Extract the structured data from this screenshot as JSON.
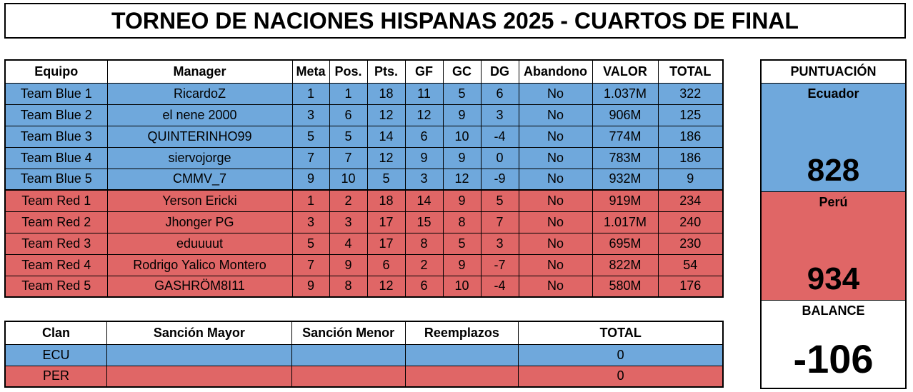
{
  "title": "TORNEO DE NACIONES HISPANAS 2025 - CUARTOS DE FINAL",
  "colors": {
    "blue": "#6fa8dc",
    "red": "#e06666"
  },
  "standings": {
    "headers": [
      "Equipo",
      "Manager",
      "Meta",
      "Pos.",
      "Pts.",
      "GF",
      "GC",
      "DG",
      "Abandono",
      "VALOR",
      "TOTAL"
    ],
    "rows": [
      [
        "Team Blue 1",
        "RicardoZ",
        "1",
        "1",
        "18",
        "11",
        "5",
        "6",
        "No",
        "1.037M",
        "322"
      ],
      [
        "Team Blue 2",
        "el nene 2000",
        "3",
        "6",
        "12",
        "12",
        "9",
        "3",
        "No",
        "906M",
        "125"
      ],
      [
        "Team Blue 3",
        "QUINTERINHO99",
        "5",
        "5",
        "14",
        "6",
        "10",
        "-4",
        "No",
        "774M",
        "186"
      ],
      [
        "Team Blue 4",
        "siervojorge",
        "7",
        "7",
        "12",
        "9",
        "9",
        "0",
        "No",
        "783M",
        "186"
      ],
      [
        "Team Blue 5",
        "CMMV_7",
        "9",
        "10",
        "5",
        "3",
        "12",
        "-9",
        "No",
        "932M",
        "9"
      ],
      [
        "Team Red 1",
        "Yerson Ericki",
        "1",
        "2",
        "18",
        "14",
        "9",
        "5",
        "No",
        "919M",
        "234"
      ],
      [
        "Team Red 2",
        "Jhonger PG",
        "3",
        "3",
        "17",
        "15",
        "8",
        "7",
        "No",
        "1.017M",
        "240"
      ],
      [
        "Team Red 3",
        "eduuuut",
        "5",
        "4",
        "17",
        "8",
        "5",
        "3",
        "No",
        "695M",
        "230"
      ],
      [
        "Team Red 4",
        "Rodrigo Yalico Montero",
        "7",
        "9",
        "6",
        "2",
        "9",
        "-7",
        "No",
        "822M",
        "54"
      ],
      [
        "Team Red 5",
        "GASHRÖM8I11",
        "9",
        "8",
        "12",
        "6",
        "10",
        "-4",
        "No",
        "580M",
        "176"
      ]
    ]
  },
  "clans": {
    "headers": [
      "Clan",
      "Sanción Mayor",
      "Sanción Menor",
      "Reemplazos",
      "TOTAL"
    ],
    "rows": [
      [
        "ECU",
        "",
        "",
        "",
        "0"
      ],
      [
        "PER",
        "",
        "",
        "",
        "0"
      ]
    ]
  },
  "score": {
    "header": "PUNTUACIÓN",
    "team1_name": "Ecuador",
    "team1_value": "828",
    "team2_name": "Perú",
    "team2_value": "934",
    "balance_label": "BALANCE",
    "balance_value": "-106"
  }
}
